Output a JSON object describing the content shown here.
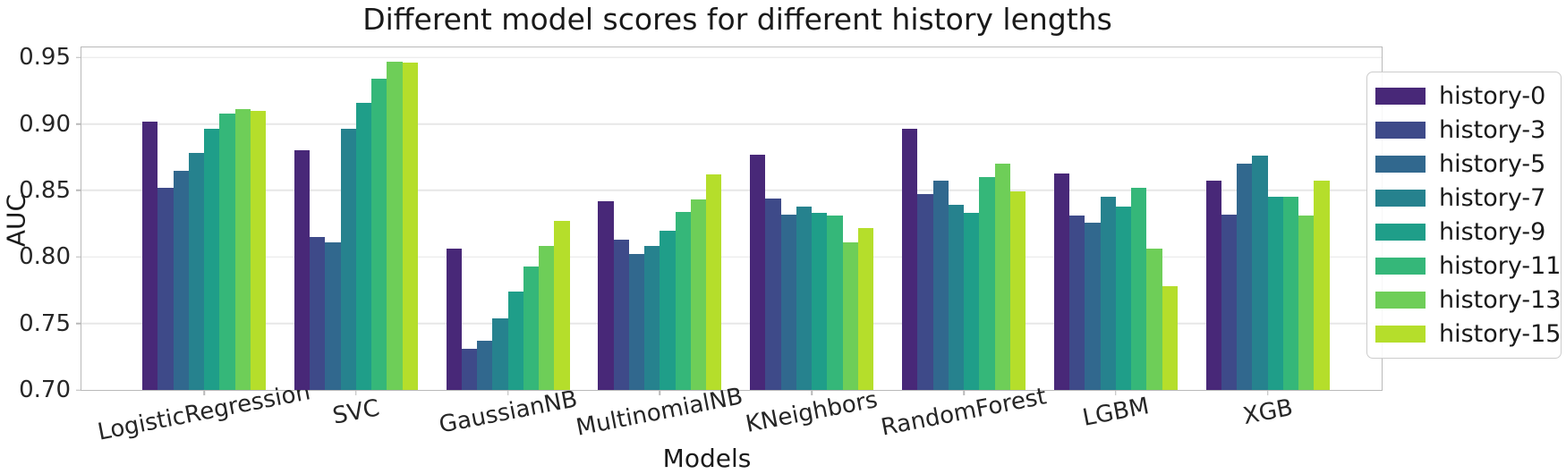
{
  "chart_data": {
    "type": "bar",
    "title": "Different model scores for different history lengths",
    "xlabel": "Models",
    "ylabel": "AUC",
    "ylim": [
      0.7,
      0.9575
    ],
    "yticks": [
      0.7,
      0.75,
      0.8,
      0.85,
      0.9,
      0.95
    ],
    "grid": true,
    "grid_color": "#e7e7e7",
    "spine_color": "#b9b9b9",
    "background": "#ffffff",
    "legend_position": "right",
    "categories": [
      "LogisticRegression",
      "SVC",
      "GaussianNB",
      "MultinomialNB",
      "KNeighbors",
      "RandomForest",
      "LGBM",
      "XGB"
    ],
    "series": [
      {
        "name": "history-0",
        "color": "#482878",
        "values": [
          0.902,
          0.88,
          0.806,
          0.842,
          0.877,
          0.896,
          0.863,
          0.857
        ]
      },
      {
        "name": "history-3",
        "color": "#3e4a89",
        "values": [
          0.852,
          0.815,
          0.731,
          0.813,
          0.844,
          0.847,
          0.831,
          0.832
        ]
      },
      {
        "name": "history-5",
        "color": "#31688e",
        "values": [
          0.865,
          0.811,
          0.737,
          0.802,
          0.832,
          0.857,
          0.826,
          0.87
        ]
      },
      {
        "name": "history-7",
        "color": "#26828e",
        "values": [
          0.878,
          0.896,
          0.754,
          0.808,
          0.838,
          0.839,
          0.845,
          0.876
        ]
      },
      {
        "name": "history-9",
        "color": "#1f9e89",
        "values": [
          0.896,
          0.916,
          0.774,
          0.82,
          0.833,
          0.833,
          0.838,
          0.845
        ]
      },
      {
        "name": "history-11",
        "color": "#35b779",
        "values": [
          0.908,
          0.934,
          0.793,
          0.834,
          0.831,
          0.86,
          0.852,
          0.845
        ]
      },
      {
        "name": "history-13",
        "color": "#6ece58",
        "values": [
          0.911,
          0.947,
          0.808,
          0.843,
          0.811,
          0.87,
          0.806,
          0.831
        ]
      },
      {
        "name": "history-15",
        "color": "#b5de2b",
        "values": [
          0.91,
          0.946,
          0.827,
          0.862,
          0.822,
          0.849,
          0.778,
          0.857
        ]
      }
    ]
  }
}
